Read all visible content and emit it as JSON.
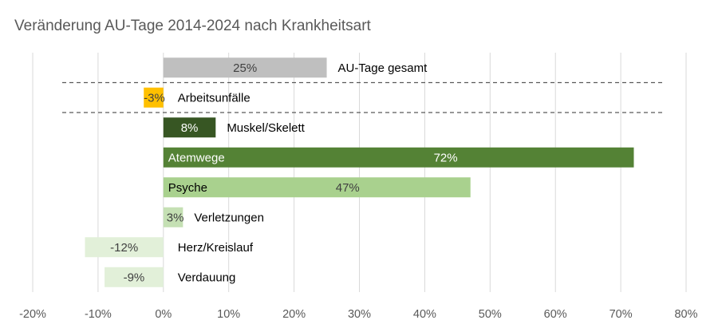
{
  "chart_data": {
    "type": "bar",
    "orientation": "horizontal",
    "title": "Veränderung  AU-Tage 2014-2024 nach Krankheitsart",
    "xlabel": "",
    "ylabel": "",
    "xlim": [
      -20,
      80
    ],
    "x_ticks": [
      -20,
      -10,
      0,
      10,
      20,
      30,
      40,
      50,
      60,
      70,
      80
    ],
    "x_tick_labels": [
      "-20%",
      "-10%",
      "0%",
      "10%",
      "20%",
      "30%",
      "40%",
      "50%",
      "60%",
      "70%",
      "80%"
    ],
    "grid": "vertical",
    "categories": [
      "AU-Tage gesamt",
      "Arbeitsunfälle",
      "Muskel/Skelett",
      "Atemwege",
      "Psyche",
      "Verletzungen",
      "Herz/Kreislauf",
      "Verdauung"
    ],
    "values": [
      25,
      -3,
      8,
      72,
      47,
      3,
      -12,
      -9
    ],
    "value_labels": [
      "25%",
      "-3%",
      "8%",
      "72%",
      "47%",
      "3%",
      "-12%",
      "-9%"
    ],
    "colors": [
      "#bfbfbf",
      "#ffc000",
      "#375623",
      "#548235",
      "#a9d18e",
      "#c5e0b4",
      "#e2f0d9",
      "#e2f0d9"
    ],
    "separators_after": [
      "AU-Tage gesamt",
      "Arbeitsunfälle"
    ]
  }
}
